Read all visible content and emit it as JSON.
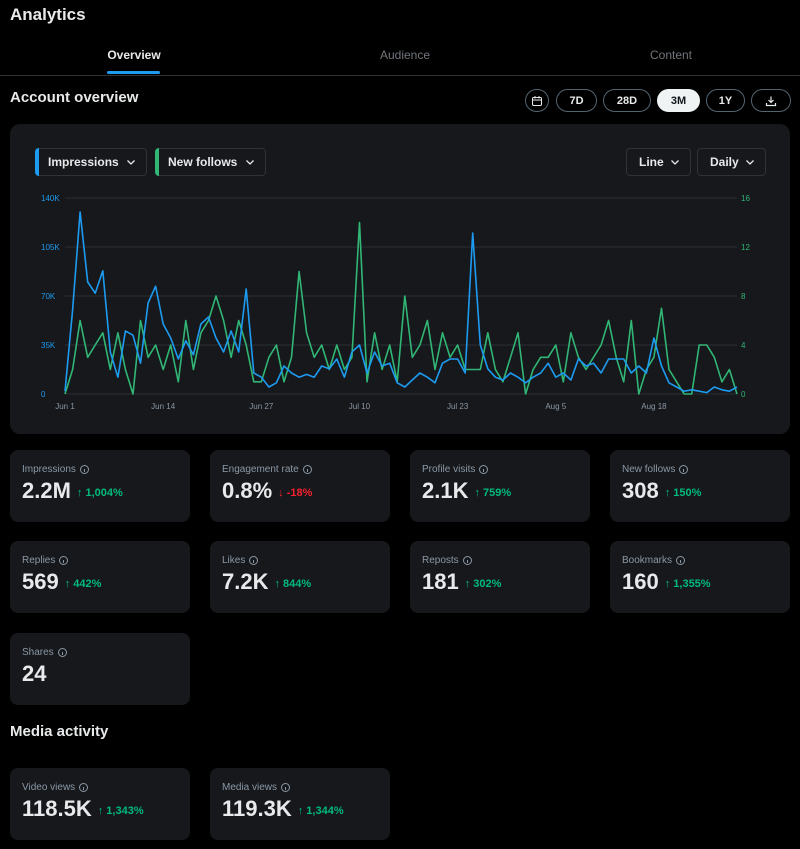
{
  "header": {
    "title": "Analytics"
  },
  "tabs": [
    {
      "label": "Overview",
      "active": true
    },
    {
      "label": "Audience",
      "active": false
    },
    {
      "label": "Content",
      "active": false
    }
  ],
  "overview": {
    "title": "Account overview",
    "ranges": [
      "7D",
      "28D",
      "3M",
      "1Y"
    ],
    "selected_range": "3M"
  },
  "chart_controls": {
    "metric1": "Impressions",
    "metric2": "New follows",
    "chart_type": "Line",
    "granularity": "Daily"
  },
  "colors": {
    "impressions": "#1d9bf0",
    "follows": "#31b675",
    "up": "#00ba7c",
    "down": "#f4212e"
  },
  "chart_data": {
    "type": "line",
    "title": "",
    "x_ticks": [
      "Jun 1",
      "Jun 14",
      "Jun 27",
      "Jul 10",
      "Jul 23",
      "Aug 5",
      "Aug 18"
    ],
    "x_tick_index": [
      0,
      13,
      26,
      39,
      52,
      65,
      78
    ],
    "y_left_ticks": [
      "0",
      "35K",
      "70K",
      "105K",
      "140K"
    ],
    "y_right_ticks": [
      "0",
      "4",
      "8",
      "12",
      "16"
    ],
    "ylim_left": [
      0,
      140000
    ],
    "ylim_right": [
      0,
      16
    ],
    "series": [
      {
        "name": "Impressions",
        "axis": "left",
        "values": [
          2000,
          60000,
          130000,
          80000,
          72000,
          88000,
          30000,
          12000,
          45000,
          42000,
          22000,
          65000,
          77000,
          50000,
          40000,
          25000,
          38000,
          28000,
          50000,
          55000,
          40000,
          30000,
          45000,
          30000,
          75000,
          15000,
          12000,
          5000,
          8000,
          20000,
          15000,
          12000,
          14000,
          12000,
          20000,
          18000,
          25000,
          12000,
          30000,
          35000,
          15000,
          30000,
          20000,
          22000,
          8000,
          5000,
          10000,
          15000,
          12000,
          8000,
          22000,
          25000,
          25000,
          15000,
          115000,
          35000,
          18000,
          12000,
          10000,
          15000,
          12000,
          8000,
          12000,
          15000,
          22000,
          12000,
          15000,
          10000,
          25000,
          20000,
          22000,
          15000,
          25000,
          25000,
          25000,
          15000,
          20000,
          15000,
          40000,
          20000,
          8000,
          5000,
          2000,
          3000,
          2000,
          1000,
          5000,
          3000,
          2000,
          5000
        ]
      },
      {
        "name": "New follows",
        "axis": "right",
        "values": [
          0,
          2,
          6,
          3,
          4,
          5,
          2,
          5,
          2,
          0,
          6,
          3,
          4,
          2,
          4,
          1,
          6,
          2,
          5,
          6,
          8,
          6,
          3,
          6,
          4,
          1,
          1,
          3,
          4,
          1,
          3,
          10,
          5,
          3,
          4,
          2,
          4,
          2,
          3,
          14,
          1,
          5,
          2,
          4,
          1,
          8,
          3,
          4,
          6,
          2,
          5,
          3,
          4,
          2,
          2,
          2,
          5,
          2,
          1,
          3,
          5,
          0,
          2,
          3,
          3,
          4,
          1,
          5,
          3,
          2,
          3,
          4,
          6,
          3,
          1,
          6,
          0,
          2,
          3,
          7,
          2,
          1,
          0,
          0,
          4,
          4,
          3,
          1,
          2,
          0
        ]
      }
    ]
  },
  "stats": [
    {
      "label": "Impressions",
      "value": "2.2M",
      "delta": "↑ 1,004%",
      "dir": "up"
    },
    {
      "label": "Engagement rate",
      "value": "0.8%",
      "delta": "↓ -18%",
      "dir": "down"
    },
    {
      "label": "Profile visits",
      "value": "2.1K",
      "delta": "↑ 759%",
      "dir": "up"
    },
    {
      "label": "New follows",
      "value": "308",
      "delta": "↑ 150%",
      "dir": "up"
    },
    {
      "label": "Replies",
      "value": "569",
      "delta": "↑ 442%",
      "dir": "up"
    },
    {
      "label": "Likes",
      "value": "7.2K",
      "delta": "↑ 844%",
      "dir": "up"
    },
    {
      "label": "Reposts",
      "value": "181",
      "delta": "↑ 302%",
      "dir": "up"
    },
    {
      "label": "Bookmarks",
      "value": "160",
      "delta": "↑ 1,355%",
      "dir": "up"
    },
    {
      "label": "Shares",
      "value": "24",
      "delta": "",
      "dir": "up"
    }
  ],
  "media": {
    "title": "Media activity",
    "stats": [
      {
        "label": "Video views",
        "value": "118.5K",
        "delta": "↑ 1,343%",
        "dir": "up"
      },
      {
        "label": "Media views",
        "value": "119.3K",
        "delta": "↑ 1,344%",
        "dir": "up"
      }
    ]
  }
}
